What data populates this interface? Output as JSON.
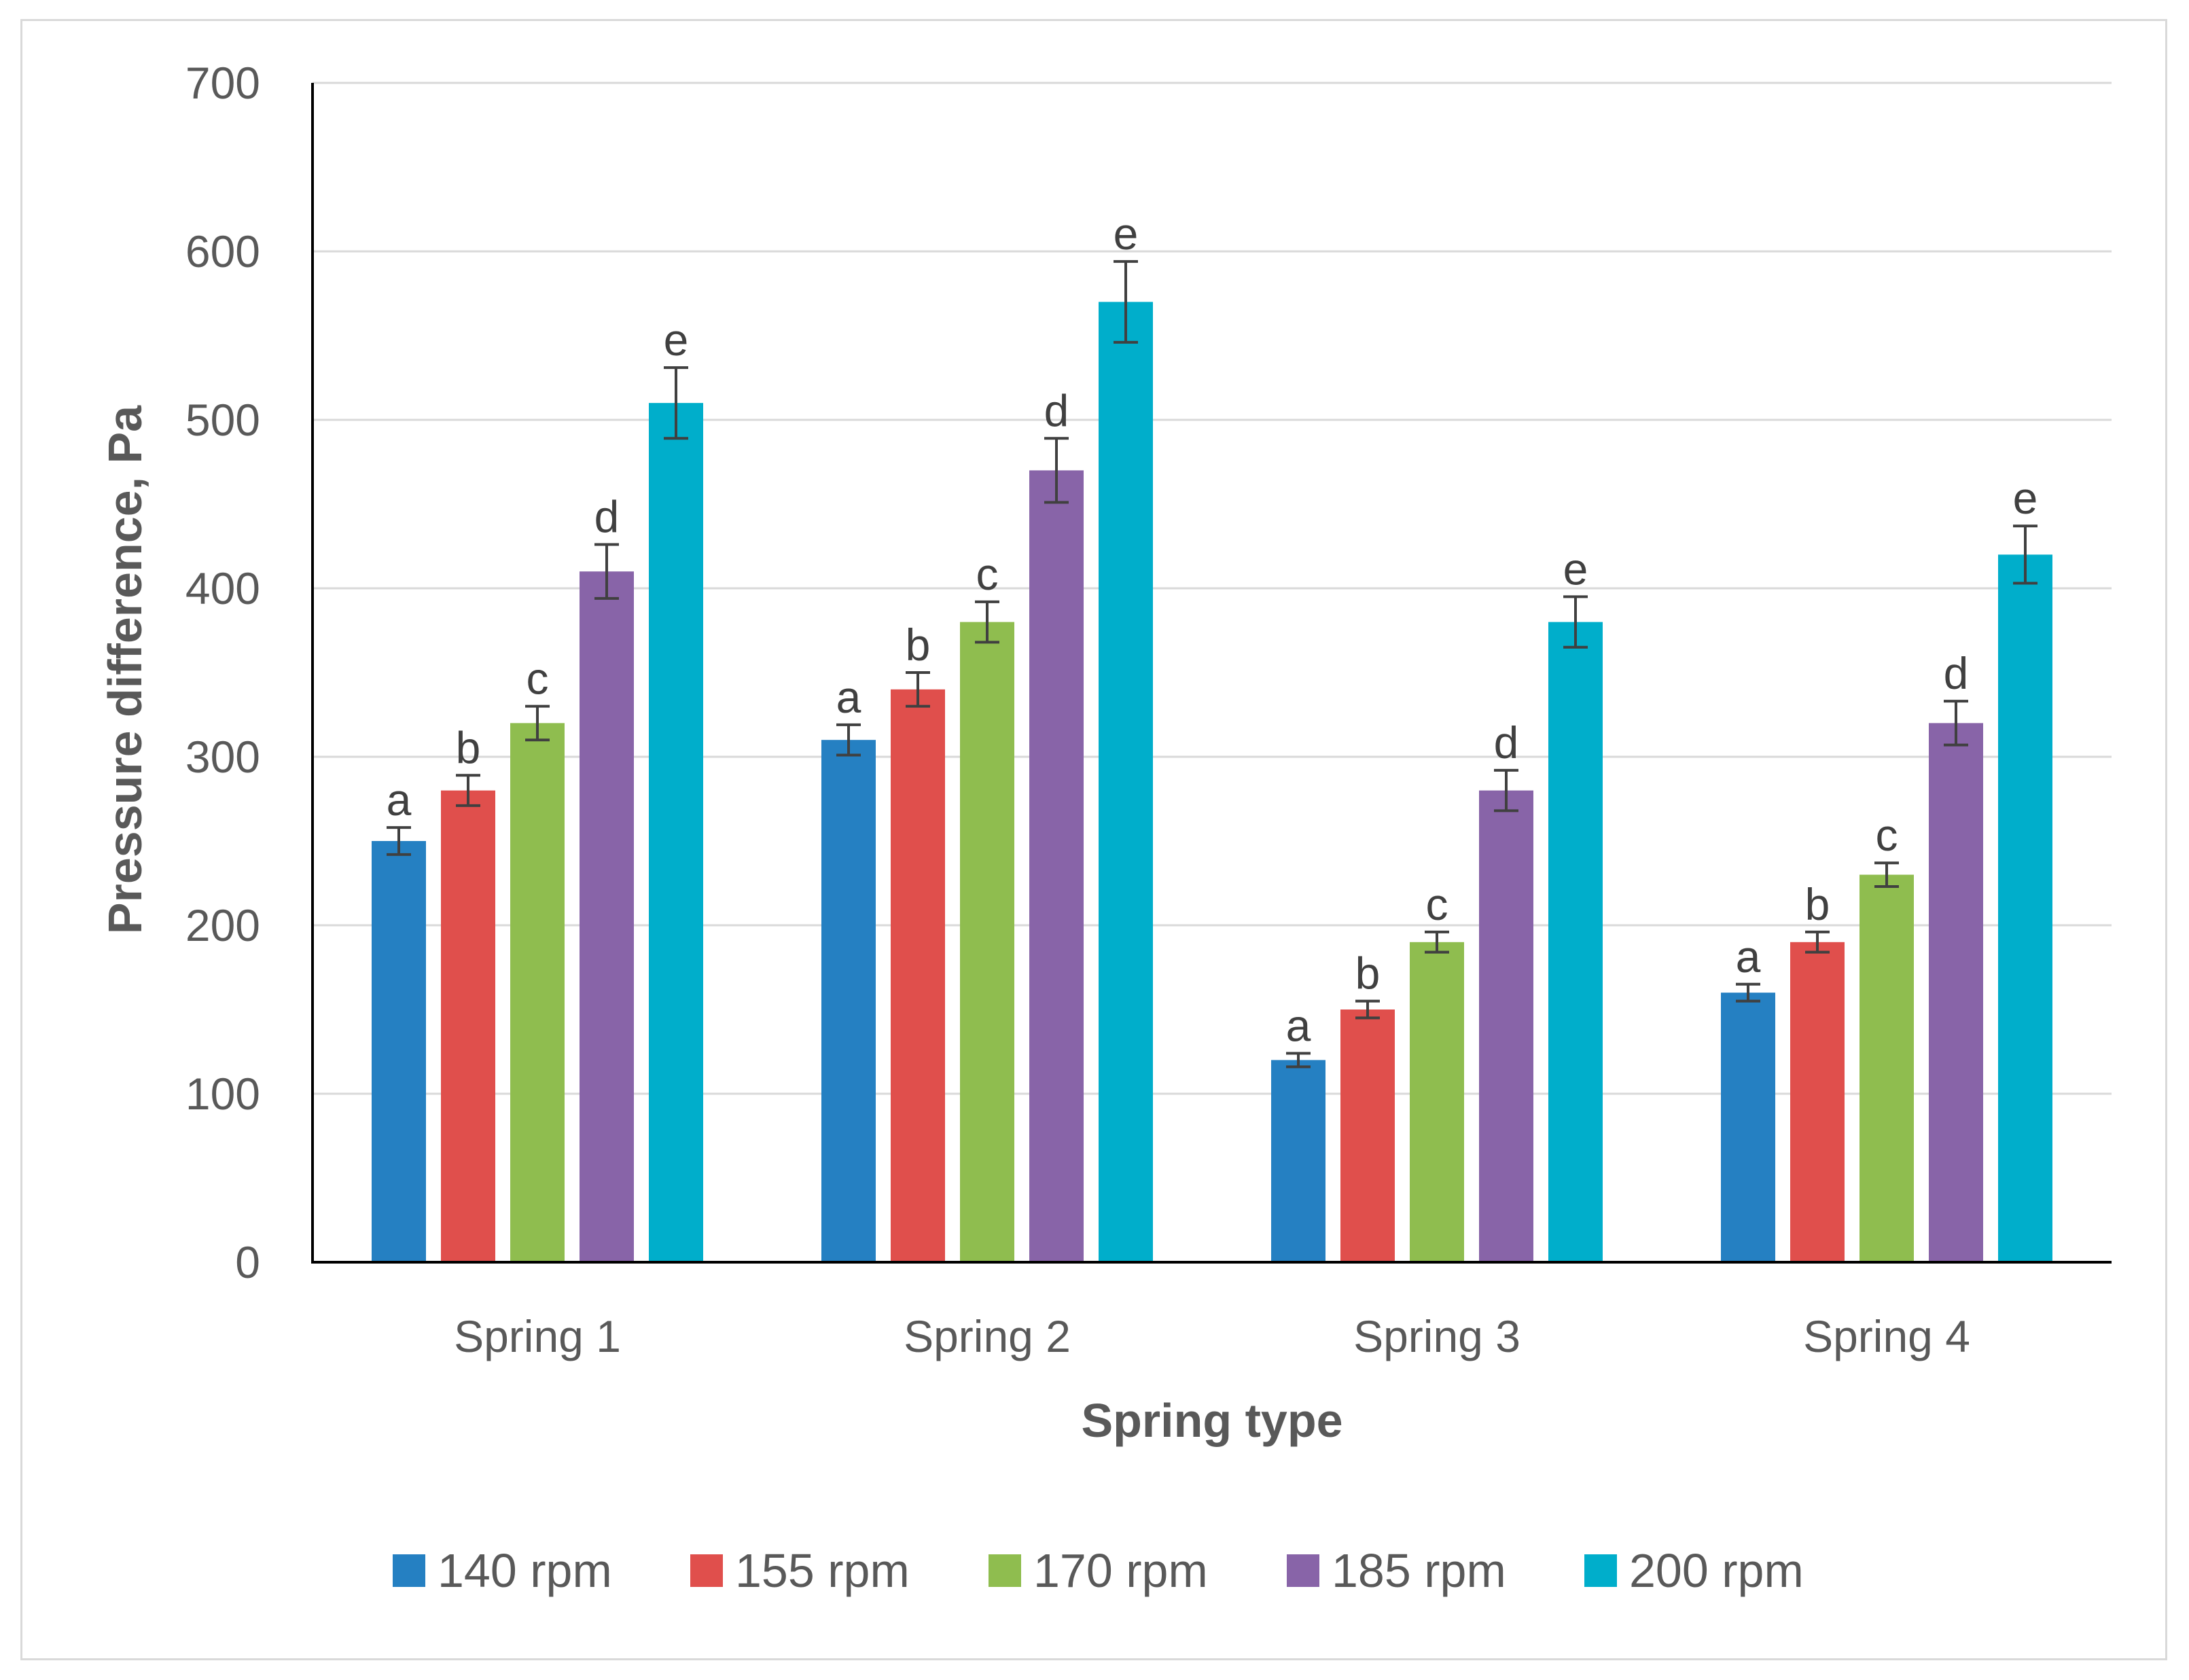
{
  "chart_data": {
    "type": "bar",
    "title": "",
    "xlabel": "Spring type",
    "ylabel": "Pressure difference, Pa",
    "ylim": [
      0,
      700
    ],
    "yticks": [
      0,
      100,
      200,
      300,
      400,
      500,
      600,
      700
    ],
    "grid": true,
    "legend_position": "bottom",
    "categories": [
      "Spring 1",
      "Spring 2",
      "Spring 3",
      "Spring 4"
    ],
    "series": [
      {
        "name": "140 rpm",
        "color": "#2580c2",
        "values": [
          250,
          310,
          120,
          160
        ],
        "errors": [
          8,
          9,
          4,
          5
        ],
        "labels": [
          "a",
          "a",
          "a",
          "a"
        ]
      },
      {
        "name": "155 rpm",
        "color": "#e04f4c",
        "values": [
          280,
          340,
          150,
          190
        ],
        "errors": [
          9,
          10,
          5,
          6
        ],
        "labels": [
          "b",
          "b",
          "b",
          "b"
        ]
      },
      {
        "name": "170 rpm",
        "color": "#8fbd4f",
        "values": [
          320,
          380,
          190,
          230
        ],
        "errors": [
          10,
          12,
          6,
          7
        ],
        "labels": [
          "c",
          "c",
          "c",
          "c"
        ]
      },
      {
        "name": "185 rpm",
        "color": "#8864a8",
        "values": [
          410,
          470,
          280,
          320
        ],
        "errors": [
          16,
          19,
          12,
          13
        ],
        "labels": [
          "d",
          "d",
          "d",
          "d"
        ]
      },
      {
        "name": "200 rpm",
        "color": "#00aecb",
        "values": [
          510,
          570,
          380,
          420
        ],
        "errors": [
          21,
          24,
          15,
          17
        ],
        "labels": [
          "e",
          "e",
          "e",
          "e"
        ]
      }
    ]
  }
}
